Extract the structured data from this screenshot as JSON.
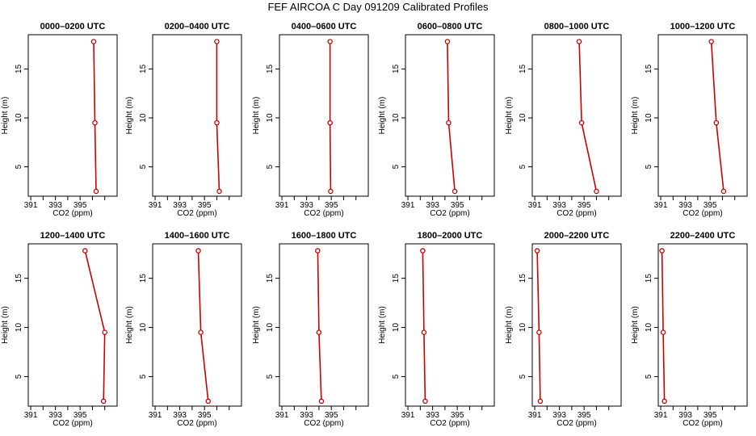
{
  "chart_data": {
    "type": "line",
    "title": "FEF AIRCOA C  Day 091209  Calibrated Profiles",
    "xlabel": "CO2 (ppm)",
    "ylabel": "Height (m)",
    "xlim": [
      390.8,
      398
    ],
    "ylim": [
      2,
      18.5
    ],
    "x_ticks": [
      391,
      392,
      393,
      394,
      395,
      396,
      397
    ],
    "x_tick_labels": [
      "391",
      "",
      "393",
      "",
      "395",
      "",
      ""
    ],
    "y_ticks": [
      5,
      10,
      15
    ],
    "y_tick_labels": [
      "5",
      "10",
      "15"
    ],
    "line_color": "#cc0000",
    "panels": [
      {
        "title": "0000–0200 UTC",
        "points": [
          {
            "height": 17.8,
            "co2": 396.1
          },
          {
            "height": 9.5,
            "co2": 396.2
          },
          {
            "height": 2.5,
            "co2": 396.3
          }
        ]
      },
      {
        "title": "0200–0400 UTC",
        "points": [
          {
            "height": 17.8,
            "co2": 396.0
          },
          {
            "height": 9.5,
            "co2": 396.0
          },
          {
            "height": 2.5,
            "co2": 396.2
          }
        ]
      },
      {
        "title": "0400–0600 UTC",
        "points": [
          {
            "height": 17.8,
            "co2": 394.9
          },
          {
            "height": 9.5,
            "co2": 394.9
          },
          {
            "height": 2.5,
            "co2": 394.95
          }
        ]
      },
      {
        "title": "0600–0800 UTC",
        "points": [
          {
            "height": 17.8,
            "co2": 394.2
          },
          {
            "height": 9.5,
            "co2": 394.3
          },
          {
            "height": 2.5,
            "co2": 394.8
          }
        ]
      },
      {
        "title": "0800–1000 UTC",
        "points": [
          {
            "height": 17.8,
            "co2": 394.6
          },
          {
            "height": 9.5,
            "co2": 394.8
          },
          {
            "height": 2.5,
            "co2": 396.0
          }
        ]
      },
      {
        "title": "1000–1200 UTC",
        "points": [
          {
            "height": 17.8,
            "co2": 395.1
          },
          {
            "height": 9.5,
            "co2": 395.5
          },
          {
            "height": 2.5,
            "co2": 396.1
          }
        ]
      },
      {
        "title": "1200–1400 UTC",
        "points": [
          {
            "height": 17.8,
            "co2": 395.4
          },
          {
            "height": 9.5,
            "co2": 397.0
          },
          {
            "height": 2.5,
            "co2": 396.9
          }
        ]
      },
      {
        "title": "1400–1600 UTC",
        "points": [
          {
            "height": 17.8,
            "co2": 394.5
          },
          {
            "height": 9.5,
            "co2": 394.7
          },
          {
            "height": 2.5,
            "co2": 395.3
          }
        ]
      },
      {
        "title": "1600–1800 UTC",
        "points": [
          {
            "height": 17.8,
            "co2": 393.9
          },
          {
            "height": 9.5,
            "co2": 394.0
          },
          {
            "height": 2.5,
            "co2": 394.2
          }
        ]
      },
      {
        "title": "1800–2000 UTC",
        "points": [
          {
            "height": 17.8,
            "co2": 392.2
          },
          {
            "height": 9.5,
            "co2": 392.3
          },
          {
            "height": 2.5,
            "co2": 392.4
          }
        ]
      },
      {
        "title": "2000–2200 UTC",
        "points": [
          {
            "height": 17.8,
            "co2": 391.2
          },
          {
            "height": 9.5,
            "co2": 391.35
          },
          {
            "height": 2.5,
            "co2": 391.45
          }
        ]
      },
      {
        "title": "2200–2400 UTC",
        "points": [
          {
            "height": 17.8,
            "co2": 391.1
          },
          {
            "height": 9.5,
            "co2": 391.2
          },
          {
            "height": 2.5,
            "co2": 391.3
          }
        ]
      }
    ]
  }
}
